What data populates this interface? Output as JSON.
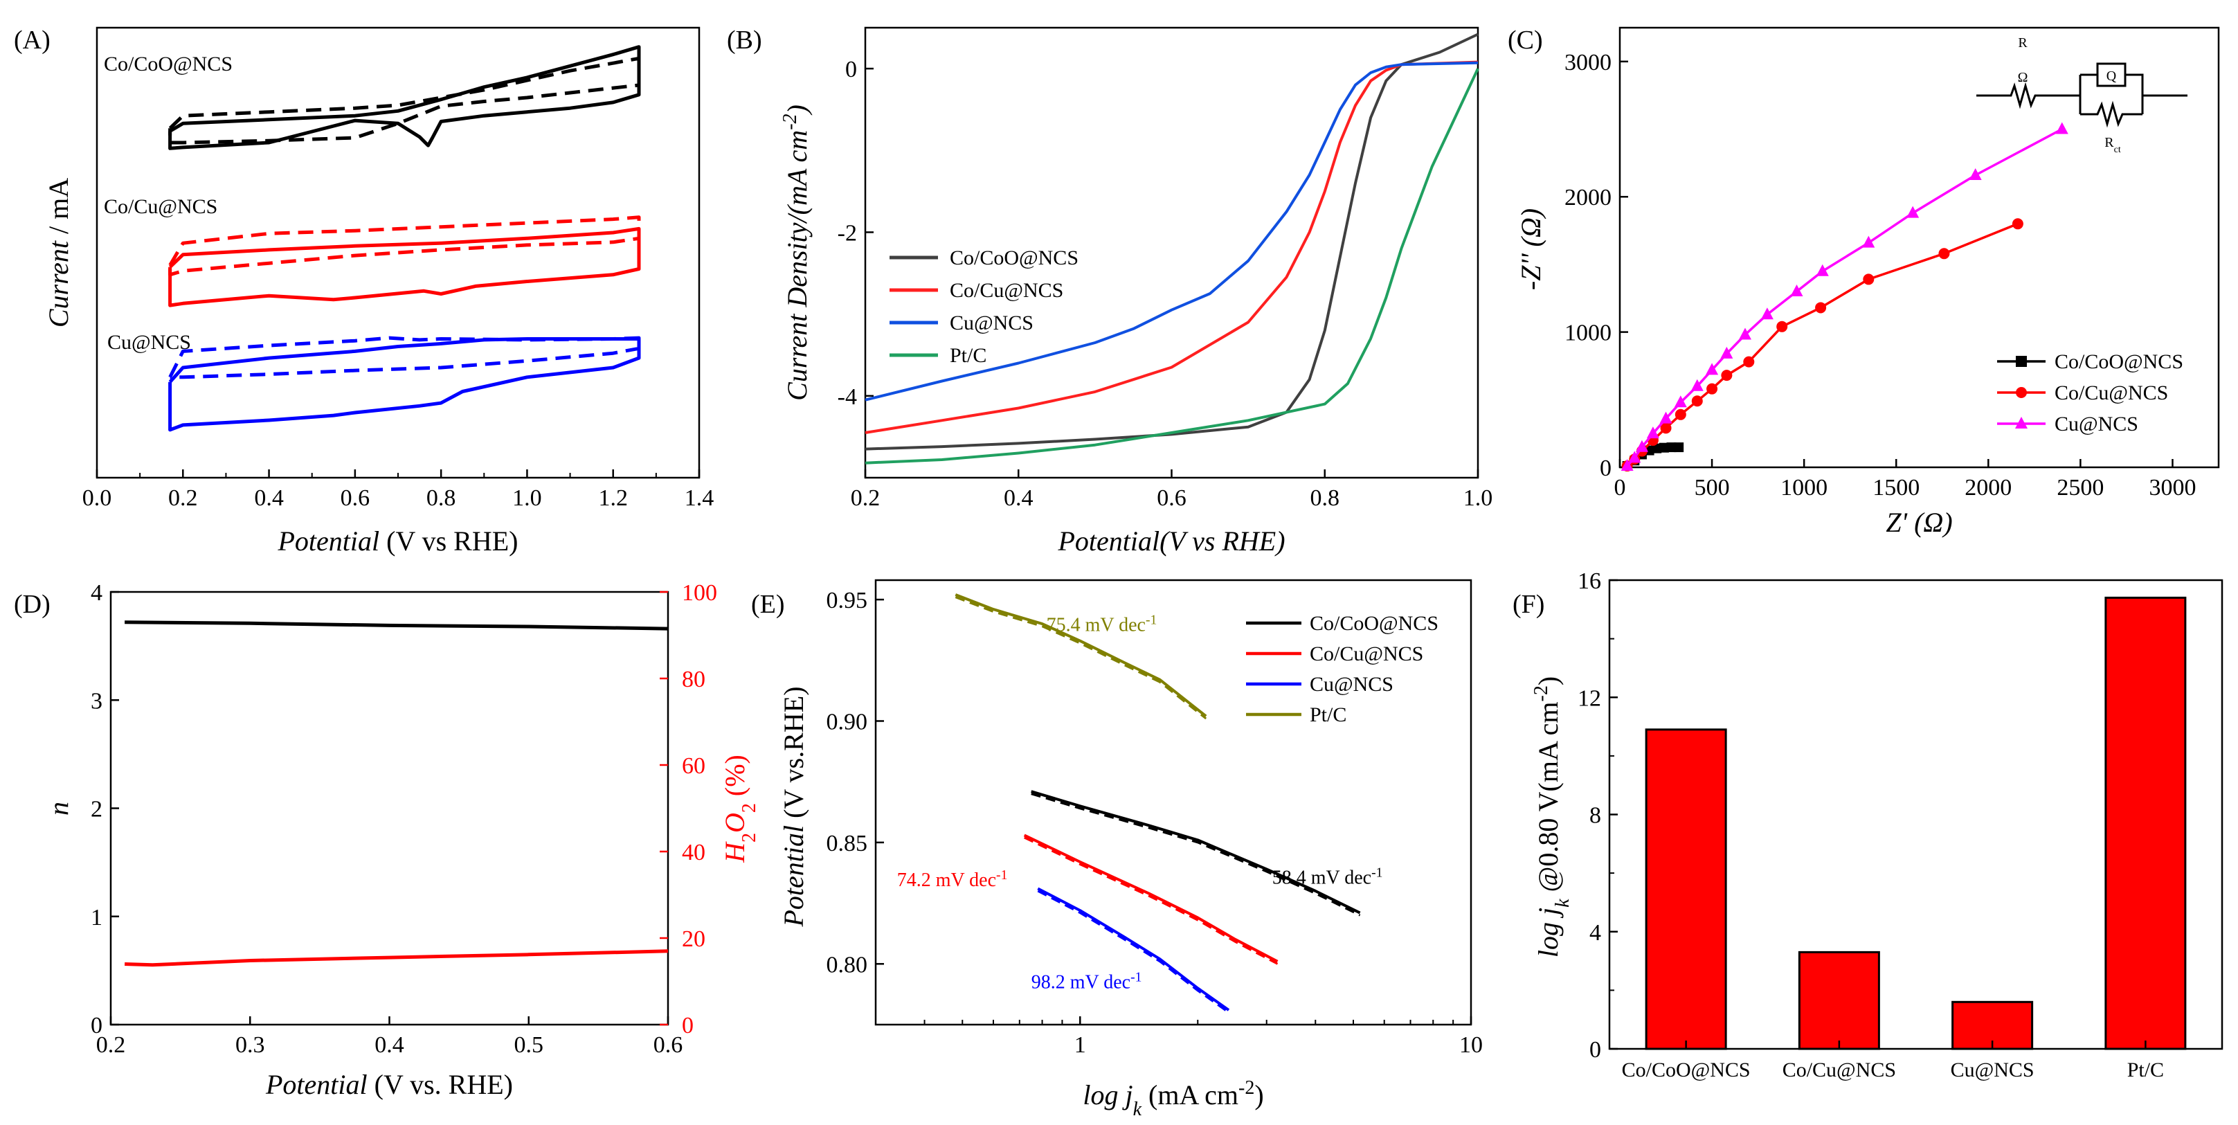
{
  "chart_data": [
    {
      "id": "A",
      "type": "line",
      "panel_label": "(A)",
      "xlabel_italic": "Potential",
      "xlabel_rest": " (V vs RHE)",
      "ylabel_italic": "Current",
      "ylabel_rest": " / mA",
      "xlim": [
        0.0,
        1.4
      ],
      "xticks": [
        "0.0",
        "0.2",
        "0.4",
        "0.6",
        "0.8",
        "1.0",
        "1.2",
        "1.4"
      ],
      "curve_labels": [
        "Co/CoO@NCS",
        "Co/Cu@NCS",
        "Cu@NCS"
      ],
      "series": [
        {
          "name": "Co/CoO@NCS",
          "color": "#000000",
          "style": "dashed",
          "x": [
            0.17,
            0.2,
            0.4,
            0.6,
            0.7,
            0.8,
            0.9,
            1.0,
            1.1,
            1.2,
            1.26,
            1.26,
            1.2,
            1.1,
            1.0,
            0.9,
            0.8,
            0.7,
            0.6,
            0.4,
            0.2,
            0.17,
            0.17
          ],
          "y": [
            2.15,
            2.28,
            2.32,
            2.36,
            2.39,
            2.47,
            2.55,
            2.65,
            2.75,
            2.83,
            2.88,
            2.6,
            2.57,
            2.52,
            2.47,
            2.43,
            2.38,
            2.2,
            2.05,
            2.02,
            2.0,
            2.0,
            2.15
          ]
        },
        {
          "name": "Co/CoO@NCS",
          "color": "#000000",
          "style": "solid",
          "x": [
            0.17,
            0.2,
            0.4,
            0.6,
            0.7,
            0.8,
            0.9,
            1.0,
            1.1,
            1.2,
            1.26,
            1.26,
            1.2,
            1.1,
            1.0,
            0.9,
            0.8,
            0.78,
            0.77,
            0.75,
            0.7,
            0.6,
            0.4,
            0.2,
            0.17,
            0.17
          ],
          "y": [
            2.12,
            2.2,
            2.24,
            2.28,
            2.33,
            2.45,
            2.58,
            2.68,
            2.8,
            2.92,
            3.0,
            2.5,
            2.42,
            2.36,
            2.32,
            2.28,
            2.22,
            2.05,
            1.97,
            2.06,
            2.2,
            2.23,
            2.0,
            1.95,
            1.94,
            2.12
          ]
        },
        {
          "name": "Co/Cu@NCS",
          "color": "#ff0000",
          "style": "dashed",
          "x": [
            0.17,
            0.2,
            0.4,
            0.6,
            0.8,
            1.0,
            1.2,
            1.26,
            1.26,
            1.2,
            1.0,
            0.8,
            0.6,
            0.4,
            0.2,
            0.17,
            0.17
          ],
          "y": [
            0.72,
            0.95,
            1.05,
            1.08,
            1.12,
            1.16,
            1.2,
            1.22,
            1.0,
            0.96,
            0.93,
            0.88,
            0.82,
            0.74,
            0.66,
            0.62,
            0.72
          ]
        },
        {
          "name": "Co/Cu@NCS",
          "color": "#ff0000",
          "style": "solid",
          "x": [
            0.17,
            0.2,
            0.4,
            0.6,
            0.8,
            1.0,
            1.2,
            1.26,
            1.26,
            1.2,
            1.0,
            0.88,
            0.8,
            0.76,
            0.6,
            0.55,
            0.4,
            0.2,
            0.17,
            0.17
          ],
          "y": [
            0.7,
            0.83,
            0.88,
            0.92,
            0.95,
            1.0,
            1.06,
            1.1,
            0.68,
            0.62,
            0.55,
            0.5,
            0.42,
            0.45,
            0.38,
            0.36,
            0.4,
            0.32,
            0.3,
            0.7
          ]
        },
        {
          "name": "Cu@NCS",
          "color": "#0000ff",
          "style": "dashed",
          "x": [
            0.17,
            0.2,
            0.4,
            0.6,
            0.68,
            0.75,
            0.8,
            1.0,
            1.2,
            1.26,
            1.26,
            1.2,
            1.0,
            0.8,
            0.6,
            0.4,
            0.2,
            0.17,
            0.17
          ],
          "y": [
            -0.45,
            -0.18,
            -0.12,
            -0.07,
            -0.04,
            -0.06,
            -0.05,
            -0.06,
            -0.05,
            -0.04,
            -0.15,
            -0.2,
            -0.28,
            -0.35,
            -0.38,
            -0.42,
            -0.45,
            -0.45,
            -0.45
          ]
        },
        {
          "name": "Cu@NCS",
          "color": "#0000ff",
          "style": "solid",
          "x": [
            0.17,
            0.2,
            0.4,
            0.6,
            0.7,
            0.8,
            0.9,
            1.0,
            1.2,
            1.26,
            1.26,
            1.2,
            1.0,
            0.85,
            0.8,
            0.75,
            0.6,
            0.55,
            0.4,
            0.2,
            0.17,
            0.17
          ],
          "y": [
            -0.5,
            -0.35,
            -0.25,
            -0.18,
            -0.13,
            -0.1,
            -0.06,
            -0.05,
            -0.05,
            -0.05,
            -0.25,
            -0.35,
            -0.45,
            -0.6,
            -0.72,
            -0.75,
            -0.82,
            -0.85,
            -0.9,
            -0.95,
            -1.0,
            -0.5
          ]
        }
      ]
    },
    {
      "id": "B",
      "type": "line",
      "panel_label": "(B)",
      "xlabel": "Potential(V vs RHE)",
      "ylabel_main": "Current Density/(mA cm",
      "ylabel_sup": "-2",
      "ylabel_close": ")",
      "xlim": [
        0.2,
        1.0
      ],
      "ylim": [
        -5.0,
        0.5
      ],
      "xticks": [
        "0.2",
        "0.4",
        "0.6",
        "0.8",
        "1.0"
      ],
      "yticks": [
        "0",
        "-2",
        "-4"
      ],
      "legend": "left-middle",
      "series": [
        {
          "name": "Co/CoO@NCS",
          "color": "#404040",
          "x": [
            0.2,
            0.3,
            0.4,
            0.5,
            0.6,
            0.7,
            0.75,
            0.78,
            0.8,
            0.82,
            0.84,
            0.86,
            0.88,
            0.9,
            0.95,
            1.0
          ],
          "y": [
            -4.65,
            -4.62,
            -4.58,
            -4.53,
            -4.47,
            -4.38,
            -4.2,
            -3.8,
            -3.2,
            -2.3,
            -1.4,
            -0.6,
            -0.15,
            0.05,
            0.2,
            0.42
          ]
        },
        {
          "name": "Co/Cu@NCS",
          "color": "#ff2020",
          "x": [
            0.2,
            0.3,
            0.4,
            0.5,
            0.6,
            0.7,
            0.75,
            0.78,
            0.8,
            0.82,
            0.84,
            0.86,
            0.88,
            0.9,
            1.0
          ],
          "y": [
            -4.45,
            -4.3,
            -4.15,
            -3.95,
            -3.65,
            -3.1,
            -2.55,
            -2.0,
            -1.5,
            -0.9,
            -0.45,
            -0.15,
            -0.02,
            0.05,
            0.08
          ]
        },
        {
          "name": "Cu@NCS",
          "color": "#1050e0",
          "x": [
            0.2,
            0.3,
            0.4,
            0.5,
            0.55,
            0.6,
            0.65,
            0.7,
            0.75,
            0.78,
            0.8,
            0.82,
            0.84,
            0.86,
            0.88,
            0.9,
            1.0
          ],
          "y": [
            -4.05,
            -3.82,
            -3.6,
            -3.35,
            -3.18,
            -2.95,
            -2.75,
            -2.35,
            -1.75,
            -1.3,
            -0.9,
            -0.5,
            -0.2,
            -0.05,
            0.02,
            0.05,
            0.07
          ]
        },
        {
          "name": "Pt/C",
          "color": "#20a060",
          "x": [
            0.2,
            0.3,
            0.4,
            0.5,
            0.6,
            0.7,
            0.8,
            0.83,
            0.86,
            0.88,
            0.9,
            0.92,
            0.94,
            0.96,
            0.98,
            1.0
          ],
          "y": [
            -4.82,
            -4.78,
            -4.7,
            -4.6,
            -4.45,
            -4.3,
            -4.1,
            -3.85,
            -3.3,
            -2.8,
            -2.2,
            -1.7,
            -1.2,
            -0.8,
            -0.4,
            0.0
          ]
        }
      ]
    },
    {
      "id": "C",
      "type": "scatter",
      "panel_label": "(C)",
      "xlabel": "Z' (Ω)",
      "ylabel": "-Z'' (Ω)",
      "xlim": [
        0,
        3250
      ],
      "ylim": [
        0,
        3250
      ],
      "xticks": [
        "0",
        "500",
        "1000",
        "1500",
        "2000",
        "2500",
        "3000"
      ],
      "yticks": [
        "0",
        "1000",
        "2000",
        "3000"
      ],
      "legend": "right-bottom",
      "circuit_labels": {
        "r_ohm_main": "R",
        "r_ohm_sub": "Ω",
        "q": "Q",
        "r_ct_main": "R",
        "r_ct_sub": "ct"
      },
      "series": [
        {
          "name": "Co/CoO@NCS",
          "color": "#000000",
          "marker": "square",
          "x": [
            40,
            80,
            120,
            160,
            200,
            240,
            280,
            320
          ],
          "y": [
            10,
            50,
            95,
            125,
            140,
            145,
            148,
            148
          ]
        },
        {
          "name": "Co/Cu@NCS",
          "color": "#ff0000",
          "marker": "circle",
          "x": [
            40,
            80,
            120,
            180,
            250,
            330,
            420,
            500,
            580,
            700,
            880,
            1090,
            1350,
            1760,
            2160
          ],
          "y": [
            10,
            60,
            120,
            200,
            290,
            390,
            490,
            580,
            680,
            780,
            1040,
            1180,
            1390,
            1580,
            1800
          ]
        },
        {
          "name": "Cu@NCS",
          "color": "#ff00ff",
          "marker": "triangle",
          "x": [
            40,
            80,
            120,
            180,
            250,
            330,
            420,
            500,
            580,
            680,
            800,
            960,
            1100,
            1350,
            1590,
            1930,
            2400
          ],
          "y": [
            10,
            70,
            150,
            250,
            360,
            480,
            600,
            720,
            840,
            980,
            1130,
            1300,
            1450,
            1660,
            1880,
            2160,
            2500
          ]
        }
      ]
    },
    {
      "id": "D",
      "type": "line",
      "panel_label": "(D)",
      "xlabel_italic": "Potential",
      "xlabel_rest": " (V vs. RHE)",
      "ylabel": "n",
      "ylabel_right_main": "H",
      "ylabel_right_sub1": "2",
      "ylabel_right_mid": "O",
      "ylabel_right_sub2": "2",
      "ylabel_right_rest": " (%)",
      "xlim": [
        0.2,
        0.6
      ],
      "ylim": [
        0,
        4
      ],
      "y2lim": [
        0,
        100
      ],
      "xticks": [
        "0.2",
        "0.3",
        "0.4",
        "0.5",
        "0.6"
      ],
      "yticks": [
        "0",
        "1",
        "2",
        "3",
        "4"
      ],
      "y2ticks": [
        "0",
        "20",
        "40",
        "60",
        "80",
        "100"
      ],
      "series": [
        {
          "name": "n",
          "color": "#000000",
          "axis": "left",
          "x": [
            0.21,
            0.3,
            0.4,
            0.5,
            0.6
          ],
          "y": [
            3.72,
            3.71,
            3.69,
            3.68,
            3.66
          ]
        },
        {
          "name": "H2O2 (%)",
          "color": "#ff0000",
          "axis": "right",
          "x": [
            0.21,
            0.23,
            0.3,
            0.4,
            0.5,
            0.6
          ],
          "y": [
            14.0,
            13.8,
            14.8,
            15.5,
            16.2,
            17.0
          ]
        }
      ]
    },
    {
      "id": "E",
      "type": "line",
      "panel_label": "(E)",
      "xlabel_italic_pre": "log j",
      "xlabel_sub": "k",
      "xlabel_rest": " (mA cm",
      "xlabel_sup": "-2",
      "xlabel_close": ")",
      "ylabel_italic": "Potential",
      "ylabel_rest": " (V vs.RHE)",
      "xscale": "log",
      "xlim": [
        0.3,
        10
      ],
      "ylim": [
        0.775,
        0.958
      ],
      "xticks": [
        "1",
        "10"
      ],
      "yticks": [
        "0.80",
        "0.85",
        "0.90",
        "0.95"
      ],
      "legend": "top-right",
      "annotations": [
        {
          "label": "75.4 mV dec",
          "sup": "-1",
          "color": "#808000",
          "x": 0.82,
          "y": 0.937
        },
        {
          "label": "58.4 mV dec",
          "sup": "-1",
          "color": "#000000",
          "x": 3.1,
          "y": 0.833
        },
        {
          "label": "74.2 mV dec",
          "sup": "-1",
          "color": "#ff0000",
          "x": 0.34,
          "y": 0.832
        },
        {
          "label": "98.2 mV dec",
          "sup": "-1",
          "color": "#0000ff",
          "x": 0.75,
          "y": 0.79
        }
      ],
      "series": [
        {
          "name": "Co/CoO@NCS",
          "color": "#000000",
          "x": [
            0.75,
            1.0,
            1.5,
            2.0,
            3.0,
            4.0,
            5.2
          ],
          "y": [
            0.871,
            0.865,
            0.857,
            0.851,
            0.839,
            0.83,
            0.821
          ]
        },
        {
          "name": "Co/Cu@NCS",
          "color": "#ff0000",
          "x": [
            0.72,
            1.0,
            1.5,
            2.0,
            2.5,
            3.2
          ],
          "y": [
            0.853,
            0.842,
            0.829,
            0.819,
            0.81,
            0.801
          ]
        },
        {
          "name": "Cu@NCS",
          "color": "#0000ff",
          "x": [
            0.78,
            1.0,
            1.3,
            1.6,
            2.0,
            2.4
          ],
          "y": [
            0.831,
            0.822,
            0.811,
            0.802,
            0.79,
            0.781
          ]
        },
        {
          "name": "Pt/C",
          "color": "#808000",
          "x": [
            0.48,
            0.6,
            0.8,
            1.0,
            1.3,
            1.6,
            2.1
          ],
          "y": [
            0.952,
            0.946,
            0.94,
            0.933,
            0.924,
            0.917,
            0.902
          ]
        }
      ]
    },
    {
      "id": "F",
      "type": "bar",
      "panel_label": "(F)",
      "ylabel_pre": "log j",
      "ylabel_sub": "k",
      "ylabel_mid": " @0.80 V(mA cm",
      "ylabel_sup": "-2",
      "ylabel_close": ")",
      "ylim": [
        0,
        16
      ],
      "yticks": [
        "0",
        "4",
        "8",
        "12",
        "16"
      ],
      "categories": [
        "Co/CoO@NCS",
        "Co/Cu@NCS",
        "Cu@NCS",
        "Pt/C"
      ],
      "values": [
        10.9,
        3.3,
        1.6,
        15.4
      ],
      "color": "#ff0000"
    }
  ]
}
